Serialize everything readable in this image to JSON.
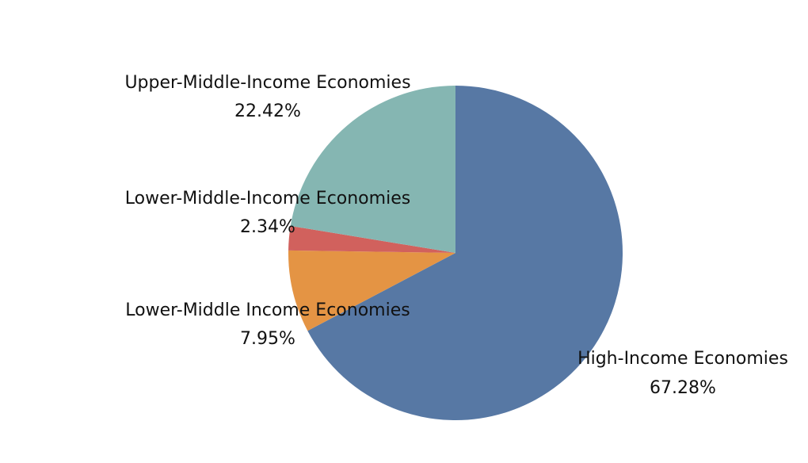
{
  "chart_data": {
    "type": "pie",
    "title": "",
    "start_angle_deg": 0,
    "direction": "clockwise",
    "slices": [
      {
        "label": "High-Income Economies",
        "value": 67.28,
        "value_label": "67.28%",
        "color": "#5778a4"
      },
      {
        "label": "Lower-Middle Income Economies",
        "value": 7.95,
        "value_label": "7.95%",
        "color": "#e49444"
      },
      {
        "label": "Lower-Middle-Income Economies",
        "value": 2.34,
        "value_label": "2.34%",
        "color": "#d1615d"
      },
      {
        "label": "Upper-Middle-Income Economies",
        "value": 22.42,
        "value_label": "22.42%",
        "color": "#85b6b2"
      }
    ]
  }
}
